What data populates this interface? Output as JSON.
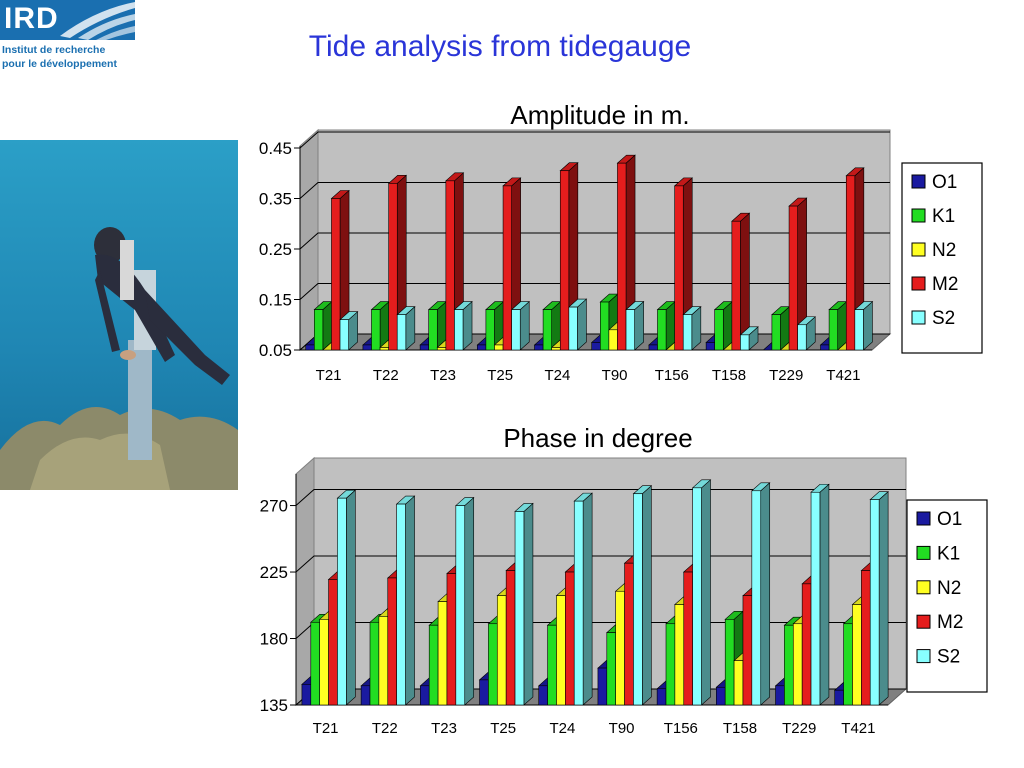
{
  "logo": {
    "abbr": "IRD",
    "line1": "Institut de recherche",
    "line2": "pour le développement"
  },
  "slide_title": "Tide analysis from tidegauge",
  "photo_icon": "diver-photo",
  "colors": {
    "O1": "#1a1aa0",
    "K1": "#22dd22",
    "N2": "#ffff22",
    "M2": "#e51d1d",
    "S2": "#88ffff",
    "wall": "#c0c0c0",
    "title": "#2a35d8"
  },
  "chart_data": [
    {
      "type": "bar",
      "title": "Amplitude in m.",
      "categories": [
        "T21",
        "T22",
        "T23",
        "T25",
        "T24",
        "T90",
        "T156",
        "T158",
        "T229",
        "T421"
      ],
      "series": [
        {
          "name": "O1",
          "values": [
            0.06,
            0.06,
            0.06,
            0.06,
            0.06,
            0.065,
            0.06,
            0.065,
            0.05,
            0.06
          ]
        },
        {
          "name": "K1",
          "values": [
            0.13,
            0.13,
            0.13,
            0.13,
            0.13,
            0.145,
            0.13,
            0.13,
            0.12,
            0.13
          ]
        },
        {
          "name": "N2",
          "values": [
            0.05,
            0.055,
            0.055,
            0.06,
            0.055,
            0.09,
            0.05,
            0.05,
            0.05,
            0.05
          ]
        },
        {
          "name": "M2",
          "values": [
            0.35,
            0.38,
            0.385,
            0.375,
            0.405,
            0.42,
            0.375,
            0.305,
            0.335,
            0.395
          ]
        },
        {
          "name": "S2",
          "values": [
            0.11,
            0.12,
            0.13,
            0.13,
            0.135,
            0.13,
            0.12,
            0.08,
            0.1,
            0.13
          ]
        }
      ],
      "yticks": [
        "0.05",
        "0.15",
        "0.25",
        "0.35",
        "0.45"
      ],
      "ylim": [
        0.05,
        0.45
      ],
      "grid": true,
      "legend": "right"
    },
    {
      "type": "bar",
      "title": "Phase in degree",
      "categories": [
        "T21",
        "T22",
        "T23",
        "T25",
        "T24",
        "T90",
        "T156",
        "T158",
        "T229",
        "T421"
      ],
      "series": [
        {
          "name": "O1",
          "values": [
            149,
            148,
            148,
            152,
            148,
            160,
            146,
            147,
            148,
            145
          ]
        },
        {
          "name": "K1",
          "values": [
            191,
            191,
            189,
            190,
            189,
            184,
            190,
            193,
            189,
            190
          ]
        },
        {
          "name": "N2",
          "values": [
            193,
            195,
            205,
            209,
            209,
            212,
            203,
            165,
            190,
            203
          ]
        },
        {
          "name": "M2",
          "values": [
            220,
            221,
            224,
            226,
            225,
            231,
            225,
            209,
            217,
            226
          ]
        },
        {
          "name": "S2",
          "values": [
            275,
            271,
            270,
            266,
            273,
            278,
            282,
            280,
            279,
            274
          ]
        }
      ],
      "yticks": [
        "135",
        "180",
        "225",
        "270"
      ],
      "ylim": [
        135,
        290
      ],
      "grid": true,
      "legend": "right"
    }
  ]
}
